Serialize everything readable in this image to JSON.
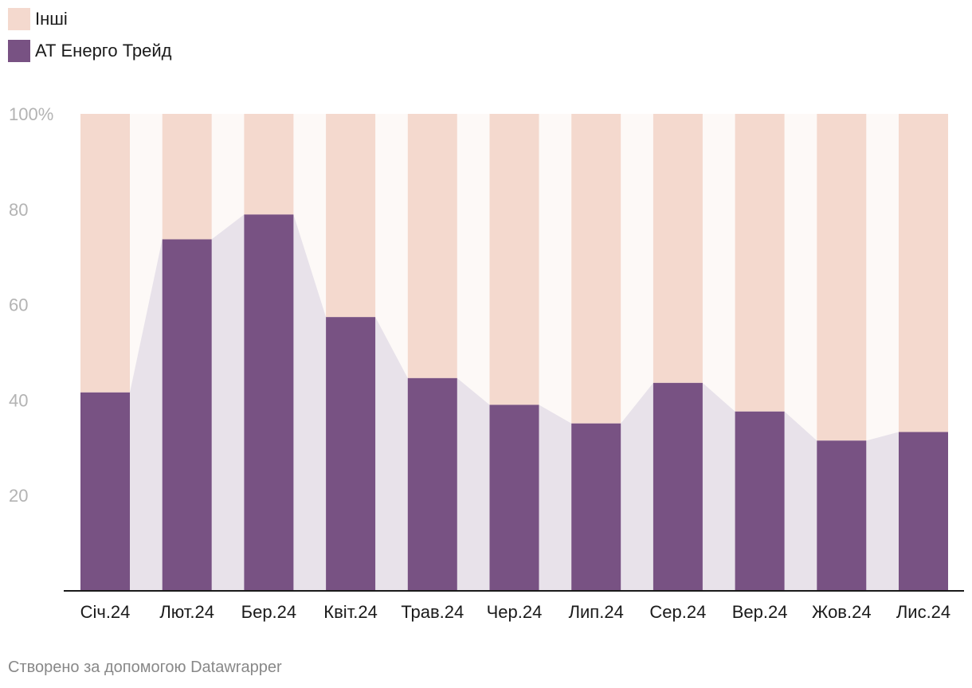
{
  "legend": {
    "items": [
      {
        "label": "Інші",
        "color": "#f4d9ce"
      },
      {
        "label": "АТ Енерго Трейд",
        "color": "#785283"
      }
    ]
  },
  "footer": {
    "text": "Створено за допомогою Datawrapper"
  },
  "colors": {
    "others": "#f4d9ce",
    "energo": "#785283",
    "area_lower": "#e8e2ea",
    "area_upper": "#fdf9f7",
    "axis": "#1a1a1a",
    "tick_text": "#b3b3b3"
  },
  "chart_data": {
    "type": "bar",
    "stacked": true,
    "percent": true,
    "title": "",
    "xlabel": "",
    "ylabel": "",
    "ylim": [
      0,
      100
    ],
    "y_ticks": [
      {
        "value": 100,
        "label": "100%"
      },
      {
        "value": 80,
        "label": "80"
      },
      {
        "value": 60,
        "label": "60"
      },
      {
        "value": 40,
        "label": "40"
      },
      {
        "value": 20,
        "label": "20"
      }
    ],
    "categories": [
      "Січ.24",
      "Лют.24",
      "Бер.24",
      "Квіт.24",
      "Трав.24",
      "Чер.24",
      "Лип.24",
      "Сер.24",
      "Вер.24",
      "Жов.24",
      "Лис.24"
    ],
    "series": [
      {
        "name": "АТ Енерго Трейд",
        "values": [
          41.6,
          73.7,
          78.9,
          57.4,
          44.6,
          39.0,
          35.1,
          43.6,
          37.6,
          31.5,
          33.3
        ]
      },
      {
        "name": "Інші",
        "values": [
          58.4,
          26.3,
          21.1,
          42.6,
          55.4,
          61.0,
          64.9,
          56.4,
          62.4,
          68.5,
          66.7
        ]
      }
    ],
    "legend_position": "top-left"
  }
}
